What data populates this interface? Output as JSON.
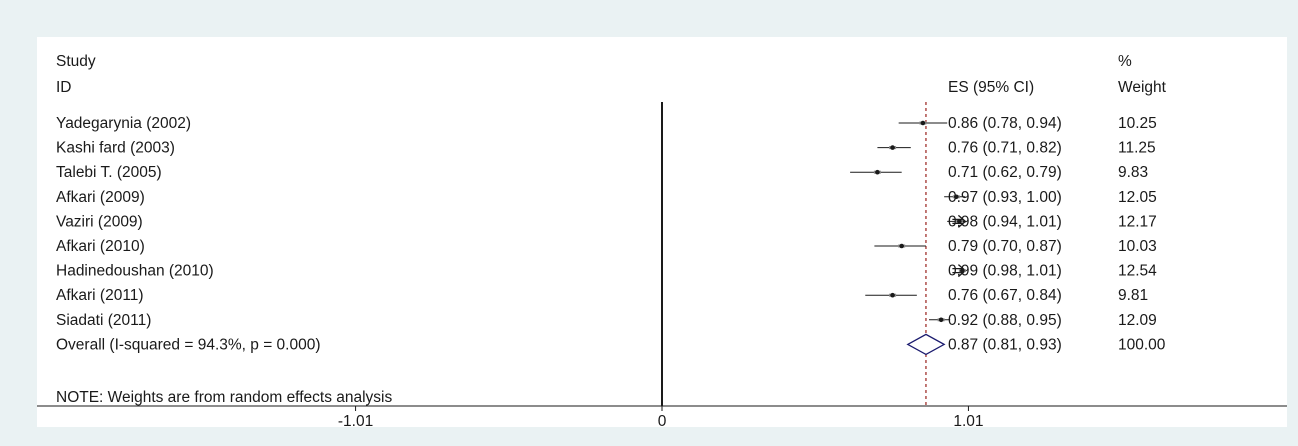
{
  "chart_data": {
    "type": "forest",
    "header": {
      "study_line1": "Study",
      "study_line2": "ID",
      "es": "ES (95% CI)",
      "weight_line1": "%",
      "weight_line2": "Weight"
    },
    "studies": [
      {
        "id": "Yadegarynia (2002)",
        "es": 0.86,
        "lo": 0.78,
        "hi": 0.94,
        "es_text": "0.86 (0.78, 0.94)",
        "weight": "10.25"
      },
      {
        "id": "Kashi fard (2003)",
        "es": 0.76,
        "lo": 0.71,
        "hi": 0.82,
        "es_text": "0.76 (0.71, 0.82)",
        "weight": "11.25"
      },
      {
        "id": "Talebi T. (2005)",
        "es": 0.71,
        "lo": 0.62,
        "hi": 0.79,
        "es_text": "0.71 (0.62, 0.79)",
        "weight": "9.83"
      },
      {
        "id": "Afkari (2009)",
        "es": 0.97,
        "lo": 0.93,
        "hi": 1.0,
        "es_text": "0.97 (0.93, 1.00)",
        "weight": "12.05"
      },
      {
        "id": "Vaziri (2009)",
        "es": 0.98,
        "lo": 0.94,
        "hi": 1.01,
        "es_text": "0.98 (0.94, 1.01)",
        "weight": "12.17"
      },
      {
        "id": "Afkari (2010)",
        "es": 0.79,
        "lo": 0.7,
        "hi": 0.87,
        "es_text": "0.79 (0.70, 0.87)",
        "weight": "10.03"
      },
      {
        "id": "Hadinedoushan (2010)",
        "es": 0.99,
        "lo": 0.98,
        "hi": 1.01,
        "es_text": "0.99 (0.98, 1.01)",
        "weight": "12.54"
      },
      {
        "id": "Afkari (2011)",
        "es": 0.76,
        "lo": 0.67,
        "hi": 0.84,
        "es_text": "0.76 (0.67, 0.84)",
        "weight": "9.81"
      },
      {
        "id": "Siadati (2011)",
        "es": 0.92,
        "lo": 0.88,
        "hi": 0.95,
        "es_text": "0.92 (0.88, 0.95)",
        "weight": "12.09"
      }
    ],
    "overall": {
      "id": "Overall  (I-squared = 94.3%, p = 0.000)",
      "es": 0.87,
      "lo": 0.81,
      "hi": 0.93,
      "es_text": "0.87 (0.81, 0.93)",
      "weight": "100.00"
    },
    "note": "NOTE: Weights are from random effects analysis",
    "x_ticks": [
      {
        "value": -1.01,
        "label": "-1.01"
      },
      {
        "value": 0,
        "label": "0"
      },
      {
        "value": 1.01,
        "label": "1.01"
      }
    ],
    "xlim": [
      -2.06,
      2.06
    ],
    "null_line": 0,
    "clip_arrow_above": 1.0,
    "colors": {
      "background": "#eaf2f3",
      "panel": "#ffffff",
      "diamond": "#1a1a6e",
      "overall_line": "#a0322d",
      "ink": "#1a1a1a"
    }
  }
}
